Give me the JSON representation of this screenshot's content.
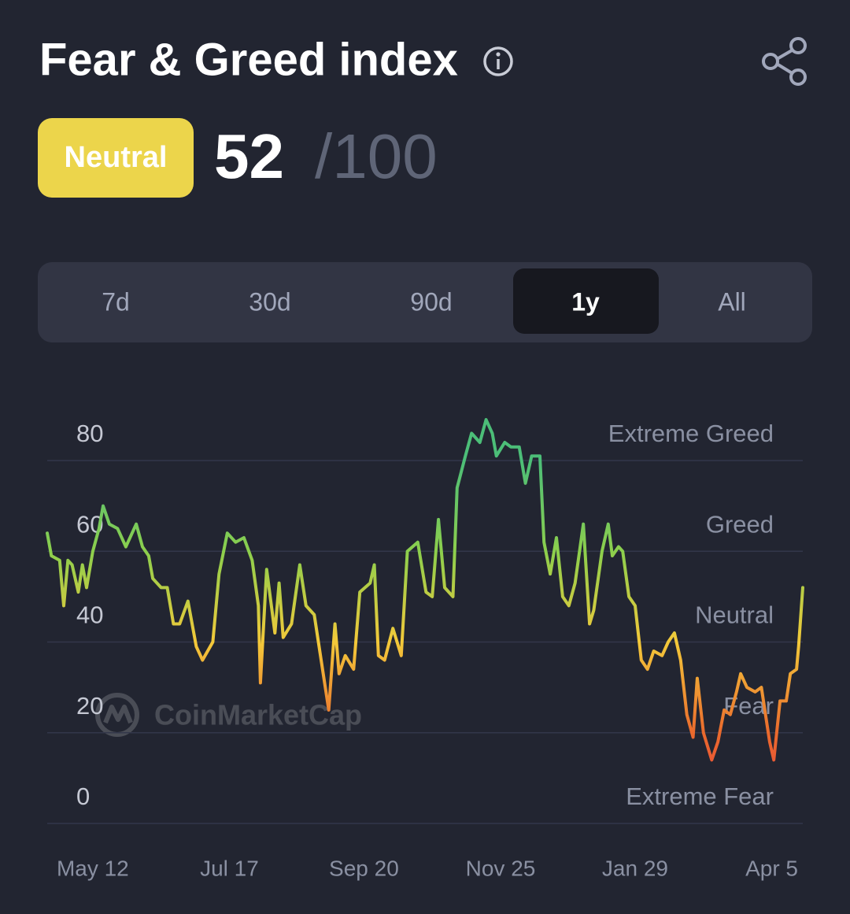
{
  "header": {
    "title": "Fear & Greed index",
    "badge": "Neutral",
    "score": "52",
    "max_label": "/100"
  },
  "tabs": {
    "items": [
      "7d",
      "30d",
      "90d",
      "1y",
      "All"
    ],
    "active": 3
  },
  "chart_data": {
    "type": "line",
    "watermark": "CoinMarketCap",
    "xlim": [
      0,
      365
    ],
    "xticks": [
      {
        "value": 22,
        "label": "May 12"
      },
      {
        "value": 88,
        "label": "Jul 17"
      },
      {
        "value": 153,
        "label": "Sep 20"
      },
      {
        "value": 219,
        "label": "Nov 25"
      },
      {
        "value": 284,
        "label": "Jan 29"
      },
      {
        "value": 350,
        "label": "Apr 5"
      }
    ],
    "ylim": [
      0,
      90
    ],
    "yticks": [
      0,
      20,
      40,
      60,
      80
    ],
    "zones": [
      "Extreme Fear",
      "Fear",
      "Neutral",
      "Greed",
      "Extreme Greed"
    ],
    "zone_colors": [
      "#ea3943",
      "#ea6a2d",
      "#f3c93a",
      "#8ccf4d",
      "#4cbe78"
    ],
    "grid": true,
    "x": [
      0,
      2,
      6,
      8,
      10,
      12,
      15,
      17,
      19,
      22,
      25,
      27,
      30,
      34,
      38,
      43,
      46,
      49,
      51,
      55,
      58,
      61,
      64,
      68,
      72,
      75,
      80,
      83,
      87,
      91,
      95,
      99,
      102,
      103,
      106,
      110,
      112,
      114,
      118,
      122,
      125,
      129,
      133,
      136,
      139,
      141,
      144,
      148,
      151,
      156,
      158,
      160,
      163,
      167,
      171,
      174,
      179,
      183,
      186,
      189,
      192,
      196,
      198,
      202,
      205,
      209,
      212,
      215,
      217,
      221,
      224,
      228,
      231,
      234,
      238,
      240,
      243,
      246,
      249,
      252,
      255,
      259,
      262,
      264,
      268,
      271,
      273,
      276,
      278,
      281,
      284,
      287,
      290,
      293,
      297,
      300,
      303,
      306,
      309,
      312,
      314,
      317,
      321,
      324,
      327,
      330,
      333,
      335,
      338,
      342,
      345,
      349,
      351,
      354,
      357,
      359,
      362,
      363,
      365
    ],
    "values": [
      64,
      59,
      58,
      48,
      58,
      57,
      51,
      57,
      52,
      60,
      65,
      70,
      66,
      65,
      61,
      66,
      61,
      59,
      54,
      52,
      52,
      44,
      44,
      49,
      39,
      36,
      40,
      55,
      64,
      62,
      63,
      58,
      48,
      31,
      56,
      42,
      53,
      41,
      44,
      57,
      48,
      46,
      34,
      25,
      44,
      33,
      37,
      34,
      51,
      53,
      57,
      37,
      36,
      43,
      37,
      60,
      62,
      51,
      50,
      67,
      52,
      50,
      74,
      81,
      86,
      84,
      89,
      86,
      81,
      84,
      83,
      83,
      75,
      81,
      81,
      62,
      55,
      63,
      50,
      48,
      53,
      66,
      44,
      47,
      60,
      66,
      59,
      61,
      60,
      50,
      48,
      36,
      34,
      38,
      37,
      40,
      42,
      36,
      24,
      19,
      32,
      20,
      14,
      18,
      25,
      24,
      29,
      33,
      30,
      29,
      30,
      18,
      14,
      27,
      27,
      33,
      34,
      39,
      52
    ]
  }
}
